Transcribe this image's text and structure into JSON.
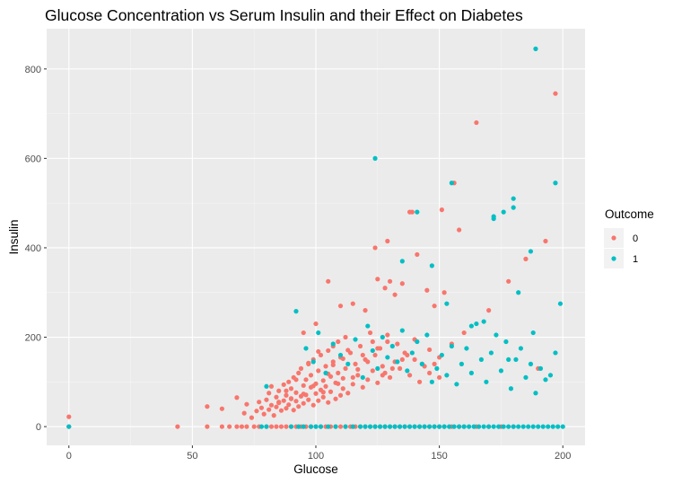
{
  "chart_data": {
    "type": "scatter",
    "title": "Glucose Concentration vs Serum Insulin and their Effect on Diabetes",
    "xlabel": "Glucose",
    "ylabel": "Insulin",
    "xlim": [
      -9,
      209
    ],
    "ylim": [
      -42,
      890
    ],
    "xticks": [
      0,
      50,
      100,
      150,
      200
    ],
    "xtick_labels": [
      "0",
      "50",
      "100",
      "150",
      "200"
    ],
    "yticks": [
      0,
      200,
      400,
      600,
      800
    ],
    "ytick_labels": [
      "0",
      "200",
      "400",
      "600",
      "800"
    ],
    "grid": true,
    "background": "#ebebeb",
    "legend": {
      "title": "Outcome",
      "position": "right",
      "entries": [
        {
          "label": "0",
          "color": "#f8766d"
        },
        {
          "label": "1",
          "color": "#00bfc4"
        }
      ]
    },
    "series": [
      {
        "name": "0",
        "color": "#f8766d",
        "x": [
          0,
          44,
          56,
          62,
          65,
          68,
          70,
          72,
          75,
          77,
          80,
          82,
          84,
          86,
          88,
          90,
          92,
          94,
          96,
          98,
          100,
          102,
          104,
          106,
          108,
          110,
          112,
          114,
          116,
          118,
          120,
          122,
          124,
          126,
          128,
          130,
          132,
          134,
          136,
          138,
          140,
          142,
          144,
          146,
          148,
          150,
          152,
          155,
          158,
          160,
          165,
          170,
          175,
          180,
          0,
          56,
          62,
          68,
          71,
          72,
          74,
          76,
          77,
          78,
          79,
          80,
          81,
          81,
          82,
          82,
          83,
          84,
          84,
          85,
          85,
          86,
          87,
          87,
          88,
          88,
          89,
          89,
          90,
          90,
          91,
          91,
          92,
          92,
          93,
          93,
          94,
          94,
          95,
          95,
          96,
          96,
          97,
          97,
          98,
          98,
          99,
          99,
          100,
          100,
          101,
          101,
          102,
          102,
          103,
          103,
          104,
          104,
          105,
          105,
          106,
          106,
          107,
          107,
          108,
          108,
          109,
          109,
          110,
          110,
          111,
          111,
          112,
          112,
          113,
          114,
          115,
          116,
          117,
          118,
          119,
          120,
          121,
          122,
          123,
          124,
          125,
          126,
          127,
          128,
          129,
          130,
          132,
          134,
          136,
          138,
          140,
          142,
          144,
          146,
          148,
          150,
          85,
          88,
          90,
          92,
          95,
          97,
          99,
          101,
          103,
          105,
          107,
          109,
          111,
          113,
          115,
          117,
          119,
          121,
          123,
          125,
          127,
          129,
          131,
          133,
          135,
          137,
          140,
          143,
          146,
          150,
          155,
          160,
          95,
          100,
          105,
          110,
          115,
          120,
          125,
          128,
          130,
          132,
          135,
          138,
          141,
          145,
          148,
          151,
          156,
          158,
          165,
          170,
          178,
          185,
          190,
          193,
          197,
          124,
          129,
          139,
          152
        ],
        "y": [
          0,
          0,
          0,
          0,
          0,
          0,
          0,
          0,
          0,
          0,
          0,
          0,
          0,
          0,
          0,
          0,
          0,
          0,
          0,
          0,
          0,
          0,
          0,
          0,
          0,
          0,
          0,
          0,
          0,
          0,
          0,
          0,
          0,
          0,
          0,
          0,
          0,
          0,
          0,
          0,
          0,
          0,
          0,
          0,
          0,
          0,
          0,
          0,
          0,
          0,
          0,
          0,
          0,
          0,
          22,
          45,
          40,
          65,
          30,
          50,
          20,
          35,
          55,
          42,
          28,
          60,
          38,
          75,
          48,
          90,
          25,
          66,
          44,
          53,
          80,
          36,
          58,
          94,
          41,
          70,
          100,
          49,
          63,
          85,
          37,
          110,
          57,
          76,
          120,
          45,
          68,
          130,
          92,
          52,
          105,
          71,
          140,
          60,
          88,
          115,
          48,
          150,
          74,
          96,
          125,
          58,
          160,
          82,
          103,
          66,
          135,
          90,
          170,
          54,
          112,
          78,
          180,
          145,
          62,
          98,
          120,
          190,
          70,
          155,
          85,
          108,
          200,
          130,
          75,
          165,
          95,
          140,
          115,
          180,
          88,
          150,
          105,
          210,
          125,
          160,
          98,
          175,
          135,
          120,
          190,
          110,
          145,
          130,
          165,
          115,
          150,
          100,
          135,
          120,
          140,
          110,
          55,
          80,
          62,
          105,
          73,
          142,
          91,
          168,
          77,
          118,
          138,
          96,
          152,
          171,
          110,
          128,
          160,
          145,
          190,
          175,
          115,
          205,
          130,
          185,
          150,
          160,
          195,
          140,
          172,
          155,
          185,
          210,
          210,
          230,
          325,
          270,
          275,
          260,
          330,
          310,
          325,
          295,
          320,
          480,
          385,
          305,
          270,
          485,
          545,
          440,
          680,
          260,
          325,
          375,
          130,
          415,
          745,
          400,
          415,
          480,
          300
        ]
      },
      {
        "name": "1",
        "color": "#00bfc4",
        "x": [
          0,
          78,
          80,
          90,
          93,
          95,
          98,
          100,
          102,
          105,
          108,
          112,
          115,
          118,
          120,
          122,
          124,
          126,
          128,
          130,
          132,
          134,
          136,
          138,
          140,
          142,
          144,
          146,
          148,
          150,
          152,
          154,
          156,
          158,
          160,
          162,
          164,
          166,
          168,
          170,
          172,
          174,
          176,
          178,
          180,
          182,
          184,
          186,
          188,
          190,
          192,
          194,
          196,
          198,
          200,
          80,
          92,
          96,
          99,
          101,
          104,
          107,
          110,
          113,
          116,
          119,
          121,
          123,
          125,
          127,
          129,
          131,
          133,
          135,
          137,
          139,
          141,
          143,
          145,
          147,
          149,
          151,
          153,
          155,
          157,
          159,
          161,
          163,
          165,
          167,
          169,
          171,
          173,
          175,
          177,
          179,
          181,
          183,
          185,
          187,
          189,
          191,
          193,
          195,
          197,
          124,
          141,
          155,
          163,
          172,
          172,
          176,
          180,
          180,
          187,
          189,
          197,
          199,
          135,
          147,
          153,
          168,
          178,
          182,
          188
        ],
        "y": [
          0,
          0,
          0,
          0,
          0,
          0,
          0,
          0,
          0,
          0,
          0,
          0,
          0,
          0,
          0,
          0,
          0,
          0,
          0,
          0,
          0,
          0,
          0,
          0,
          0,
          0,
          0,
          0,
          0,
          0,
          0,
          0,
          0,
          0,
          0,
          0,
          0,
          0,
          0,
          0,
          0,
          0,
          0,
          0,
          0,
          0,
          0,
          0,
          0,
          0,
          0,
          0,
          0,
          0,
          0,
          90,
          258,
          175,
          145,
          210,
          120,
          185,
          160,
          140,
          195,
          110,
          225,
          170,
          130,
          200,
          155,
          180,
          145,
          215,
          125,
          165,
          190,
          140,
          205,
          100,
          130,
          160,
          115,
          180,
          95,
          140,
          175,
          120,
          230,
          150,
          100,
          165,
          205,
          125,
          190,
          85,
          150,
          175,
          110,
          140,
          75,
          130,
          105,
          115,
          165,
          600,
          480,
          545,
          225,
          470,
          465,
          480,
          510,
          490,
          392,
          845,
          545,
          275,
          370,
          360,
          275,
          235,
          150,
          300,
          210
        ]
      }
    ]
  }
}
